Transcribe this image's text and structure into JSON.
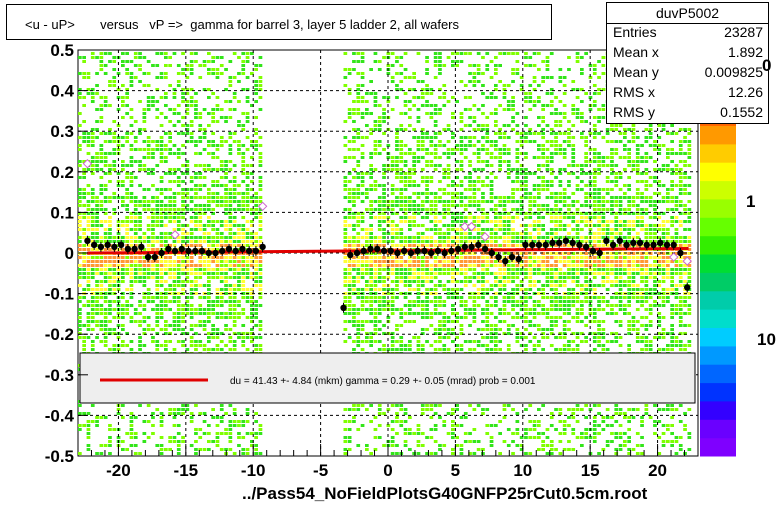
{
  "title": "<u - uP>       versus   vP =>  gamma for barrel 3, layer 5 ladder 2, all wafers",
  "stats": {
    "name": "duvP5002",
    "rows": [
      {
        "key": "Entries",
        "value": "23287"
      },
      {
        "key": "Mean x",
        "value": "1.892"
      },
      {
        "key": "Mean y",
        "value": "0.009825"
      },
      {
        "key": "RMS x",
        "value": "12.26"
      },
      {
        "key": "RMS y",
        "value": "0.1552"
      }
    ]
  },
  "legend": {
    "text": "du =   41.43 +-  4.84 (mkm) gamma =    0.29 +-  0.05 (mrad) prob = 0.001",
    "line_color": "#e00000"
  },
  "footer": "../Pass54_NoFieldPlotsG40GNFP25rCut0.5cm.root",
  "colorbar_labels": [
    "0",
    "1",
    "10"
  ],
  "colors": {
    "hist_green": "#33e51a",
    "hist_lime": "#7fff00",
    "hist_yellow": "#ffff33",
    "hist_orange": "#ff9933",
    "fit_line": "#e00000",
    "points": "#000000",
    "open_points": "#cc66cc"
  },
  "chart_data": {
    "type": "scatter",
    "title": "<u - uP>       versus   vP =>  gamma for barrel 3, layer 5 ladder 2, all wafers",
    "xlim": [
      -23,
      23
    ],
    "ylim": [
      -0.5,
      0.5
    ],
    "x_ticks": [
      -20,
      -15,
      -10,
      -5,
      0,
      5,
      10,
      15,
      20
    ],
    "y_ticks": [
      -0.5,
      -0.4,
      -0.3,
      -0.2,
      -0.1,
      0,
      0.1,
      0.2,
      0.3,
      0.4,
      0.5
    ],
    "grid": true,
    "legend_position": "bottom-center",
    "fit_line": {
      "x": [
        -22.3,
        22.3
      ],
      "y": [
        0.0,
        0.011
      ]
    },
    "profile_x": [
      -22.3,
      -21.8,
      -21.3,
      -20.8,
      -20.3,
      -19.8,
      -19.3,
      -18.8,
      -18.3,
      -17.8,
      -17.3,
      -16.8,
      -16.3,
      -15.8,
      -15.3,
      -14.8,
      -14.3,
      -13.8,
      -13.3,
      -12.8,
      -12.3,
      -11.8,
      -11.3,
      -10.8,
      -10.3,
      -9.8,
      -9.3,
      -3.3,
      -2.8,
      -2.3,
      -1.8,
      -1.3,
      -0.8,
      -0.3,
      0.2,
      0.7,
      1.2,
      1.7,
      2.2,
      2.7,
      3.2,
      3.7,
      4.2,
      4.7,
      5.2,
      5.7,
      6.2,
      6.7,
      7.2,
      7.7,
      8.2,
      8.7,
      9.2,
      9.7,
      10.2,
      10.7,
      11.2,
      11.7,
      12.2,
      12.7,
      13.2,
      13.7,
      14.2,
      14.7,
      15.2,
      15.7,
      16.2,
      16.7,
      17.2,
      17.7,
      18.2,
      18.7,
      19.2,
      19.7,
      20.2,
      20.7,
      21.2,
      21.7,
      22.2
    ],
    "profile_y": [
      0.03,
      0.02,
      0.015,
      0.02,
      0.015,
      0.02,
      0.01,
      0.01,
      0.015,
      -0.01,
      -0.01,
      0.0,
      0.01,
      0.005,
      0.01,
      0.005,
      0.005,
      0.005,
      0.0,
      0.0,
      0.005,
      0.01,
      0.005,
      0.01,
      0.005,
      0.005,
      0.015,
      -0.135,
      -0.005,
      0.0,
      0.005,
      0.01,
      0.01,
      0.005,
      0.005,
      0.0,
      0.005,
      0.0,
      0.005,
      0.005,
      0.0,
      0.005,
      0.0,
      0.005,
      0.01,
      0.015,
      0.015,
      0.02,
      0.01,
      0.0,
      -0.01,
      -0.02,
      -0.01,
      -0.015,
      0.02,
      0.02,
      0.02,
      0.02,
      0.025,
      0.025,
      0.03,
      0.025,
      0.02,
      0.015,
      0.005,
      0.0,
      0.03,
      0.02,
      0.03,
      0.02,
      0.025,
      0.025,
      0.02,
      0.02,
      0.025,
      0.02,
      0.02,
      0.0,
      -0.085
    ],
    "open_points_x": [
      -22.3,
      -15.8,
      -9.3,
      5.7,
      6.2,
      7.2,
      21.2,
      22.2
    ],
    "open_points_y": [
      0.22,
      0.045,
      0.115,
      0.065,
      0.065,
      0.04,
      -0.01,
      -0.02
    ],
    "histogram_x_ranges": [
      [
        -23,
        -9.3
      ],
      [
        -3.3,
        22.3
      ]
    ]
  }
}
